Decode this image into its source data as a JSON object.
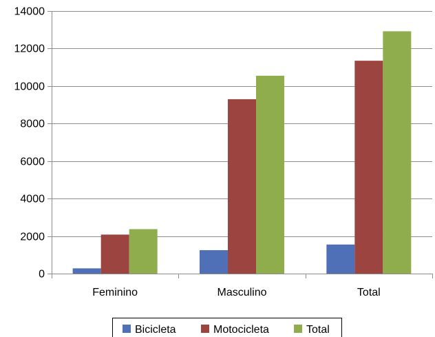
{
  "chart_data": {
    "type": "bar",
    "title": "",
    "xlabel": "",
    "ylabel": "",
    "categories": [
      "Feminino",
      "Masculino",
      "Total"
    ],
    "series": [
      {
        "name": "Bicicleta",
        "color": "#4f6fb7",
        "values": [
          280,
          1250,
          1550
        ]
      },
      {
        "name": "Motocicleta",
        "color": "#9c4440",
        "values": [
          2080,
          9300,
          11350
        ]
      },
      {
        "name": "Total",
        "color": "#8fad4c",
        "values": [
          2370,
          10550,
          12920
        ]
      }
    ],
    "ylim": [
      0,
      14000
    ],
    "yticks": [
      0,
      2000,
      4000,
      6000,
      8000,
      10000,
      12000,
      14000
    ],
    "grid": true,
    "legend": "bottom"
  }
}
